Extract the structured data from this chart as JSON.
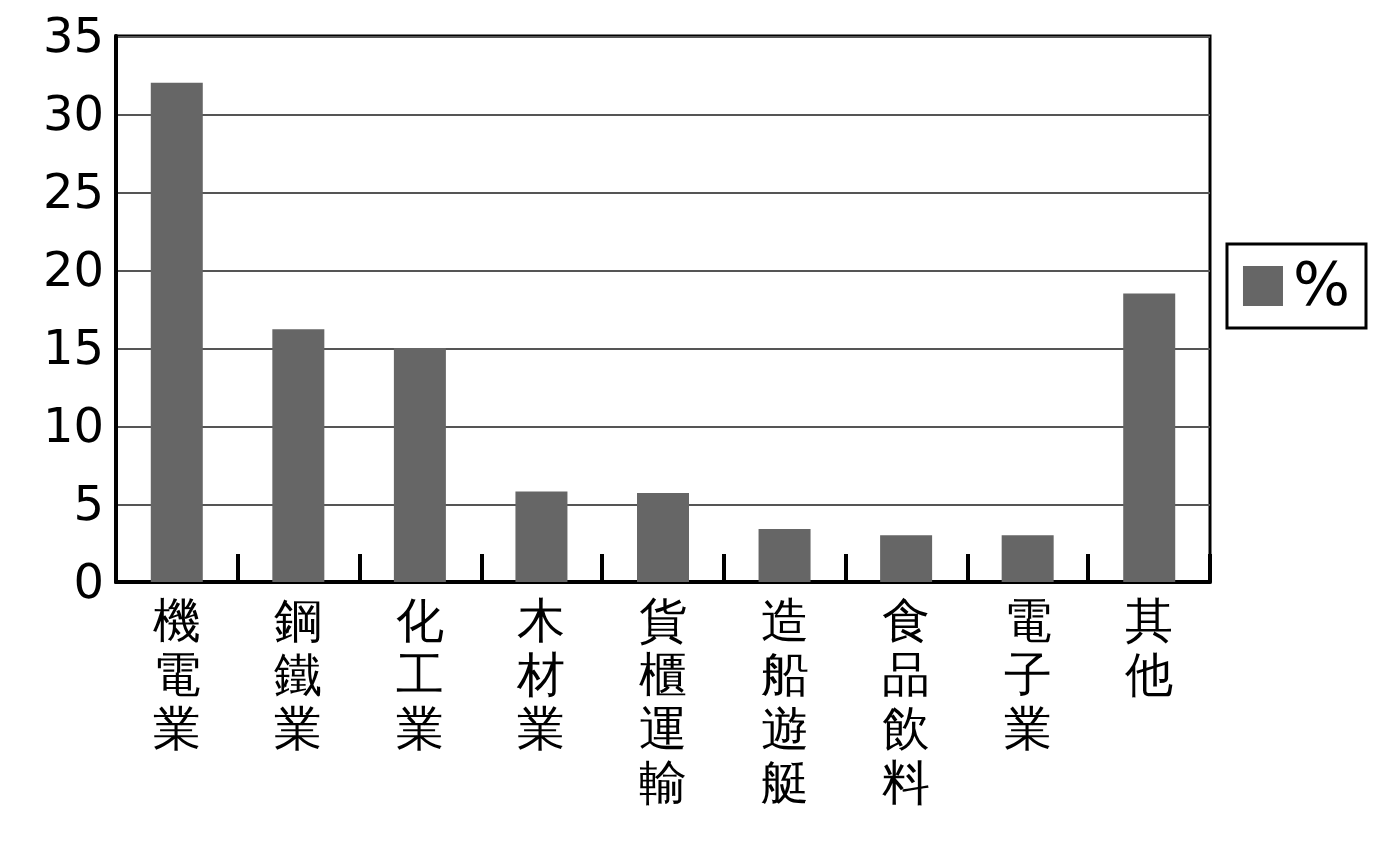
{
  "chart_data": {
    "type": "bar",
    "categories": [
      "機電業",
      "鋼鐵業",
      "化工業",
      "木材業",
      "貨櫃運輸",
      "造船遊艇",
      "食品飲料",
      "電子業",
      "其他"
    ],
    "series": [
      {
        "name": "%",
        "color": "#666666",
        "values": [
          32,
          16.2,
          15,
          5.8,
          5.7,
          3.4,
          3.0,
          3.0,
          18.5
        ]
      }
    ],
    "ylim": [
      0,
      35
    ],
    "yticks": [
      0,
      5,
      10,
      15,
      20,
      25,
      30,
      35
    ],
    "grid": "y",
    "legend": "right"
  }
}
